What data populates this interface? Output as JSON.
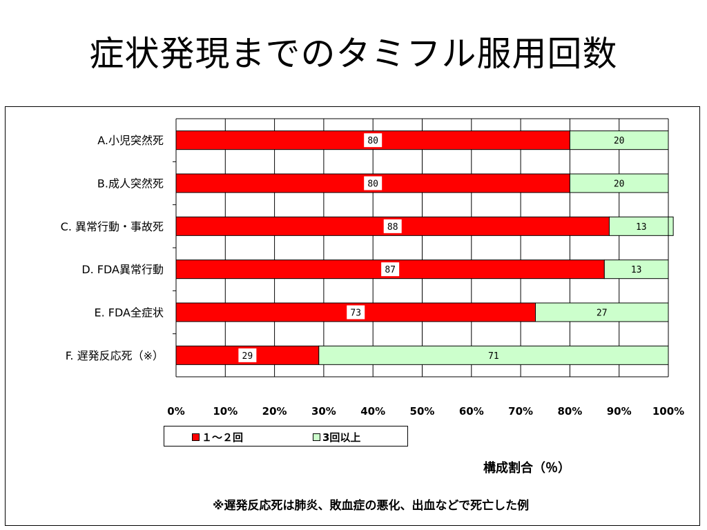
{
  "title": "症状発現までのタミフル服用回数",
  "footnote": "※遅発反応死は肺炎、敗血症の悪化、出血などで死亡した例",
  "chart_data": {
    "type": "bar",
    "orientation": "horizontal",
    "stacked": true,
    "percent_stacked": true,
    "categories": [
      "A.小児突然死",
      "B.成人突然死",
      "C. 異常行動・事故死",
      "D. FDA異常行動",
      "E. FDA全症状",
      "F. 遅発反応死（※）"
    ],
    "series": [
      {
        "name": "１〜２回",
        "values": [
          80,
          80,
          88,
          87,
          73,
          29
        ],
        "color": "#ff0000"
      },
      {
        "name": "3回以上",
        "values": [
          20,
          20,
          13,
          13,
          27,
          71
        ],
        "color": "#ccffcc"
      }
    ],
    "xlabel": "構成割合（％）",
    "xlim": [
      0,
      100
    ],
    "xticks": [
      "0%",
      "10%",
      "20%",
      "30%",
      "40%",
      "50%",
      "60%",
      "70%",
      "80%",
      "90%",
      "100%"
    ],
    "grid": true,
    "legend_position": "bottom"
  }
}
